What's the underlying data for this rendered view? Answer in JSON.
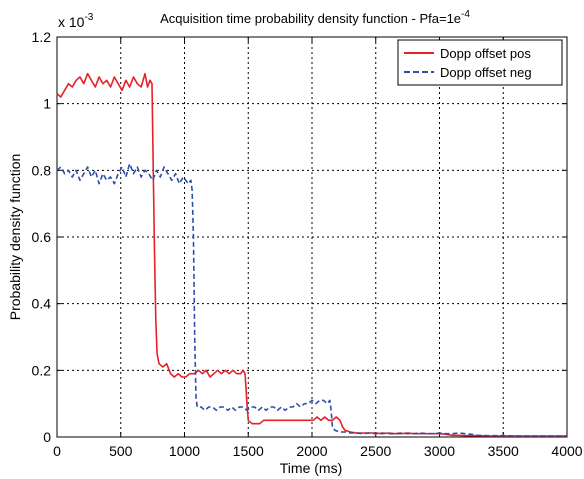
{
  "chart_data": {
    "type": "line",
    "title_main": "Acquisition time probability density function - Pfa=1e",
    "title_exp": "-4",
    "xlabel": "Time (ms)",
    "ylabel": "Probability density function",
    "y_multiplier_base": "x 10",
    "y_multiplier_exp": "-3",
    "xlim": [
      0,
      4000
    ],
    "ylim": [
      0,
      1.2
    ],
    "x_ticks": [
      0,
      500,
      1000,
      1500,
      2000,
      2500,
      3000,
      3500,
      4000
    ],
    "x_tick_labels": [
      "0",
      "500",
      "1000",
      "1500",
      "2000",
      "2500",
      "3000",
      "3500",
      "4000"
    ],
    "y_ticks": [
      0,
      0.2,
      0.4,
      0.6,
      0.8,
      1.0,
      1.2
    ],
    "y_tick_labels": [
      "0",
      "0.2",
      "0.4",
      "0.6",
      "0.8",
      "1",
      "1.2"
    ],
    "grid": true,
    "legend_position": "top-right",
    "series": [
      {
        "name": "Dopp offset pos",
        "color": "#e8202a",
        "style": "solid",
        "points": [
          [
            0,
            1.03
          ],
          [
            30,
            1.02
          ],
          [
            60,
            1.04
          ],
          [
            90,
            1.06
          ],
          [
            120,
            1.05
          ],
          [
            150,
            1.07
          ],
          [
            180,
            1.08
          ],
          [
            210,
            1.06
          ],
          [
            240,
            1.09
          ],
          [
            270,
            1.07
          ],
          [
            300,
            1.05
          ],
          [
            330,
            1.08
          ],
          [
            360,
            1.06
          ],
          [
            390,
            1.07
          ],
          [
            420,
            1.05
          ],
          [
            450,
            1.08
          ],
          [
            480,
            1.06
          ],
          [
            510,
            1.04
          ],
          [
            540,
            1.07
          ],
          [
            570,
            1.05
          ],
          [
            600,
            1.08
          ],
          [
            630,
            1.06
          ],
          [
            660,
            1.05
          ],
          [
            690,
            1.09
          ],
          [
            710,
            1.05
          ],
          [
            730,
            1.07
          ],
          [
            745,
            1.06
          ],
          [
            755,
            0.8
          ],
          [
            765,
            0.55
          ],
          [
            775,
            0.35
          ],
          [
            785,
            0.25
          ],
          [
            800,
            0.22
          ],
          [
            830,
            0.21
          ],
          [
            860,
            0.22
          ],
          [
            890,
            0.19
          ],
          [
            920,
            0.18
          ],
          [
            950,
            0.19
          ],
          [
            980,
            0.18
          ],
          [
            1010,
            0.18
          ],
          [
            1040,
            0.19
          ],
          [
            1080,
            0.19
          ],
          [
            1110,
            0.2
          ],
          [
            1140,
            0.19
          ],
          [
            1170,
            0.2
          ],
          [
            1200,
            0.18
          ],
          [
            1230,
            0.19
          ],
          [
            1260,
            0.2
          ],
          [
            1290,
            0.19
          ],
          [
            1320,
            0.2
          ],
          [
            1350,
            0.19
          ],
          [
            1380,
            0.2
          ],
          [
            1410,
            0.19
          ],
          [
            1440,
            0.19
          ],
          [
            1460,
            0.2
          ],
          [
            1475,
            0.19
          ],
          [
            1490,
            0.1
          ],
          [
            1500,
            0.05
          ],
          [
            1530,
            0.04
          ],
          [
            1560,
            0.04
          ],
          [
            1590,
            0.04
          ],
          [
            1620,
            0.05
          ],
          [
            1650,
            0.05
          ],
          [
            1680,
            0.05
          ],
          [
            1710,
            0.05
          ],
          [
            1740,
            0.05
          ],
          [
            1770,
            0.05
          ],
          [
            1800,
            0.05
          ],
          [
            1830,
            0.05
          ],
          [
            1860,
            0.05
          ],
          [
            1890,
            0.05
          ],
          [
            1920,
            0.05
          ],
          [
            1950,
            0.05
          ],
          [
            1980,
            0.05
          ],
          [
            2010,
            0.05
          ],
          [
            2040,
            0.06
          ],
          [
            2070,
            0.05
          ],
          [
            2100,
            0.06
          ],
          [
            2130,
            0.05
          ],
          [
            2160,
            0.05
          ],
          [
            2190,
            0.06
          ],
          [
            2220,
            0.05
          ],
          [
            2240,
            0.03
          ],
          [
            2260,
            0.02
          ],
          [
            2300,
            0.015
          ],
          [
            2350,
            0.012
          ],
          [
            2400,
            0.012
          ],
          [
            2450,
            0.012
          ],
          [
            2500,
            0.012
          ],
          [
            2550,
            0.01
          ],
          [
            2600,
            0.012
          ],
          [
            2650,
            0.01
          ],
          [
            2700,
            0.01
          ],
          [
            2750,
            0.012
          ],
          [
            2800,
            0.01
          ],
          [
            2850,
            0.01
          ],
          [
            2900,
            0.01
          ],
          [
            2950,
            0.01
          ],
          [
            3000,
            0.01
          ],
          [
            3050,
            0.008
          ],
          [
            3100,
            0.005
          ],
          [
            3150,
            0.005
          ],
          [
            3200,
            0.004
          ],
          [
            3300,
            0.004
          ],
          [
            3400,
            0.003
          ],
          [
            3500,
            0.003
          ],
          [
            3600,
            0.003
          ],
          [
            3700,
            0.003
          ],
          [
            3800,
            0.003
          ],
          [
            3900,
            0.003
          ],
          [
            4000,
            0.003
          ]
        ]
      },
      {
        "name": "Dopp offset neg",
        "color": "#2b4fa8",
        "style": "dashed",
        "points": [
          [
            0,
            0.8
          ],
          [
            30,
            0.81
          ],
          [
            60,
            0.79
          ],
          [
            90,
            0.8
          ],
          [
            120,
            0.78
          ],
          [
            150,
            0.8
          ],
          [
            180,
            0.77
          ],
          [
            210,
            0.79
          ],
          [
            240,
            0.81
          ],
          [
            270,
            0.78
          ],
          [
            300,
            0.8
          ],
          [
            330,
            0.76
          ],
          [
            360,
            0.79
          ],
          [
            390,
            0.77
          ],
          [
            420,
            0.78
          ],
          [
            450,
            0.76
          ],
          [
            480,
            0.79
          ],
          [
            510,
            0.81
          ],
          [
            540,
            0.78
          ],
          [
            570,
            0.82
          ],
          [
            600,
            0.79
          ],
          [
            630,
            0.81
          ],
          [
            660,
            0.78
          ],
          [
            690,
            0.8
          ],
          [
            720,
            0.79
          ],
          [
            750,
            0.77
          ],
          [
            780,
            0.8
          ],
          [
            810,
            0.78
          ],
          [
            840,
            0.81
          ],
          [
            870,
            0.79
          ],
          [
            900,
            0.77
          ],
          [
            930,
            0.79
          ],
          [
            960,
            0.76
          ],
          [
            990,
            0.78
          ],
          [
            1010,
            0.77
          ],
          [
            1030,
            0.76
          ],
          [
            1050,
            0.77
          ],
          [
            1060,
            0.74
          ],
          [
            1070,
            0.6
          ],
          [
            1080,
            0.3
          ],
          [
            1090,
            0.12
          ],
          [
            1100,
            0.09
          ],
          [
            1130,
            0.09
          ],
          [
            1160,
            0.08
          ],
          [
            1190,
            0.09
          ],
          [
            1220,
            0.09
          ],
          [
            1250,
            0.08
          ],
          [
            1280,
            0.09
          ],
          [
            1310,
            0.09
          ],
          [
            1340,
            0.08
          ],
          [
            1370,
            0.09
          ],
          [
            1400,
            0.08
          ],
          [
            1430,
            0.09
          ],
          [
            1460,
            0.09
          ],
          [
            1490,
            0.08
          ],
          [
            1520,
            0.09
          ],
          [
            1550,
            0.09
          ],
          [
            1580,
            0.08
          ],
          [
            1610,
            0.09
          ],
          [
            1640,
            0.08
          ],
          [
            1670,
            0.09
          ],
          [
            1700,
            0.09
          ],
          [
            1730,
            0.08
          ],
          [
            1760,
            0.09
          ],
          [
            1790,
            0.08
          ],
          [
            1820,
            0.09
          ],
          [
            1850,
            0.09
          ],
          [
            1880,
            0.1
          ],
          [
            1910,
            0.09
          ],
          [
            1940,
            0.1
          ],
          [
            1970,
            0.1
          ],
          [
            2000,
            0.11
          ],
          [
            2030,
            0.1
          ],
          [
            2060,
            0.11
          ],
          [
            2090,
            0.11
          ],
          [
            2120,
            0.1
          ],
          [
            2140,
            0.11
          ],
          [
            2150,
            0.08
          ],
          [
            2160,
            0.03
          ],
          [
            2180,
            0.02
          ],
          [
            2220,
            0.015
          ],
          [
            2260,
            0.015
          ],
          [
            2300,
            0.012
          ],
          [
            2350,
            0.012
          ],
          [
            2400,
            0.01
          ],
          [
            2450,
            0.012
          ],
          [
            2500,
            0.01
          ],
          [
            2550,
            0.012
          ],
          [
            2600,
            0.01
          ],
          [
            2650,
            0.01
          ],
          [
            2700,
            0.012
          ],
          [
            2750,
            0.01
          ],
          [
            2800,
            0.01
          ],
          [
            2850,
            0.012
          ],
          [
            2900,
            0.01
          ],
          [
            2950,
            0.01
          ],
          [
            3000,
            0.012
          ],
          [
            3050,
            0.01
          ],
          [
            3100,
            0.01
          ],
          [
            3150,
            0.012
          ],
          [
            3200,
            0.01
          ],
          [
            3250,
            0.008
          ],
          [
            3300,
            0.005
          ],
          [
            3400,
            0.004
          ],
          [
            3500,
            0.004
          ],
          [
            3600,
            0.003
          ],
          [
            3700,
            0.003
          ],
          [
            3800,
            0.003
          ],
          [
            3900,
            0.003
          ],
          [
            4000,
            0.003
          ]
        ]
      }
    ]
  }
}
